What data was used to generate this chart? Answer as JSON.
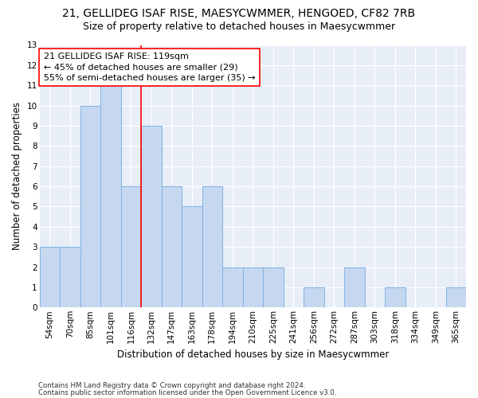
{
  "title1": "21, GELLIDEG ISAF RISE, MAESYCWMMER, HENGOED, CF82 7RB",
  "title2": "Size of property relative to detached houses in Maesycwmmer",
  "xlabel": "Distribution of detached houses by size in Maesycwmmer",
  "ylabel": "Number of detached properties",
  "categories": [
    "54sqm",
    "70sqm",
    "85sqm",
    "101sqm",
    "116sqm",
    "132sqm",
    "147sqm",
    "163sqm",
    "178sqm",
    "194sqm",
    "210sqm",
    "225sqm",
    "241sqm",
    "256sqm",
    "272sqm",
    "287sqm",
    "303sqm",
    "318sqm",
    "334sqm",
    "349sqm",
    "365sqm"
  ],
  "values": [
    3,
    3,
    10,
    11,
    6,
    9,
    6,
    5,
    6,
    2,
    2,
    2,
    0,
    1,
    0,
    2,
    0,
    1,
    0,
    0,
    1
  ],
  "bar_color": "#c5d8f0",
  "bar_edge_color": "#7fb2e0",
  "reference_line_x": 4.5,
  "annotation_line1": "21 GELLIDEG ISAF RISE: 119sqm",
  "annotation_line2": "← 45% of detached houses are smaller (29)",
  "annotation_line3": "55% of semi-detached houses are larger (35) →",
  "footnote1": "Contains HM Land Registry data © Crown copyright and database right 2024.",
  "footnote2": "Contains public sector information licensed under the Open Government Licence v3.0.",
  "ylim": [
    0,
    13
  ],
  "yticks": [
    0,
    1,
    2,
    3,
    4,
    5,
    6,
    7,
    8,
    9,
    10,
    11,
    12,
    13
  ],
  "background_color": "#e8eef8",
  "grid_color": "#ffffff",
  "title_fontsize": 10,
  "subtitle_fontsize": 9,
  "annotation_fontsize": 8,
  "axis_label_fontsize": 8.5,
  "tick_fontsize": 7.5
}
